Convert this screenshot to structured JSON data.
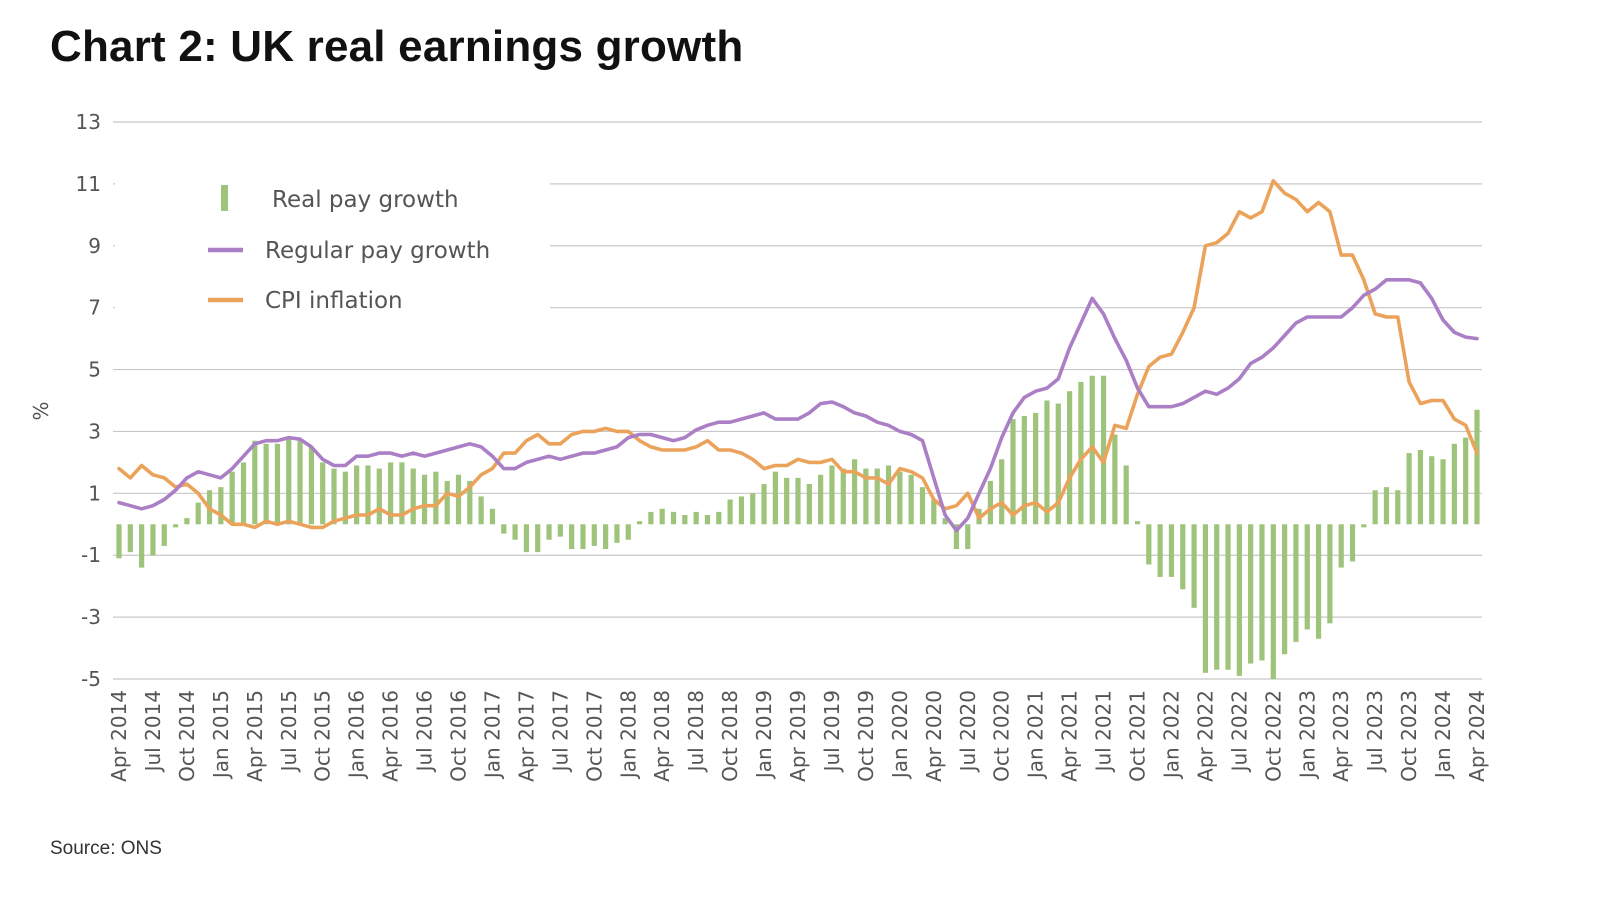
{
  "title": "Chart 2: UK real earnings growth",
  "source": "Source: ONS",
  "colors": {
    "real_pay": "#9dc47a",
    "regular_pay": "#ab7fc5",
    "cpi": "#eba25a",
    "grid": "#c8c8c8",
    "text": "#555555"
  },
  "chart_data": {
    "type": "bar+line",
    "title": "Chart 2: UK real earnings growth",
    "xlabel": "",
    "ylabel": "%",
    "ylim": [
      -5,
      13
    ],
    "yticks": [
      13,
      11,
      9,
      7,
      5,
      3,
      1,
      -1,
      -3,
      -5
    ],
    "grid": true,
    "legend_position": "top-left",
    "start_month": "Apr 2014",
    "end_month": "Apr 2024",
    "xtick_labels": [
      "Apr 2014",
      "Jul 2014",
      "Oct 2014",
      "Jan 2015",
      "Apr 2015",
      "Jul 2015",
      "Oct 2015",
      "Jan 2016",
      "Apr 2016",
      "Jul 2016",
      "Oct 2016",
      "Jan 2017",
      "Apr 2017",
      "Jul 2017",
      "Oct 2017",
      "Jan 2018",
      "Apr 2018",
      "Jul 2018",
      "Oct 2018",
      "Jan 2019",
      "Apr 2019",
      "Jul 2019",
      "Oct 2019",
      "Jan 2020",
      "Apr 2020",
      "Jul 2020",
      "Oct 2020",
      "Jan 2021",
      "Apr 2021",
      "Jul 2021",
      "Oct 2021",
      "Jan 2022",
      "Apr 2022",
      "Jul 2022",
      "Oct 2022",
      "Jan 2023",
      "Apr 2023",
      "Jul 2023",
      "Oct 2023",
      "Jan 2024",
      "Apr 2024"
    ],
    "series": [
      {
        "name": "Real pay growth",
        "type": "bar",
        "values": [
          -1.1,
          -0.9,
          -1.4,
          -1.0,
          -0.7,
          -0.1,
          0.2,
          0.7,
          1.1,
          1.2,
          1.7,
          2.0,
          2.7,
          2.6,
          2.6,
          2.8,
          2.7,
          2.5,
          2.0,
          1.8,
          1.7,
          1.9,
          1.9,
          1.8,
          2.0,
          2.0,
          1.8,
          1.6,
          1.7,
          1.4,
          1.6,
          1.4,
          0.9,
          0.5,
          -0.3,
          -0.5,
          -0.9,
          -0.9,
          -0.5,
          -0.4,
          -0.8,
          -0.8,
          -0.7,
          -0.8,
          -0.6,
          -0.5,
          0.1,
          0.4,
          0.5,
          0.4,
          0.3,
          0.4,
          0.3,
          0.4,
          0.8,
          0.9,
          1.0,
          1.3,
          1.7,
          1.5,
          1.5,
          1.3,
          1.6,
          1.9,
          1.8,
          2.1,
          1.8,
          1.8,
          1.9,
          1.7,
          1.6,
          1.2,
          0.8,
          0.2,
          -0.8,
          -0.8,
          0.5,
          1.4,
          2.1,
          3.4,
          3.5,
          3.6,
          4.0,
          3.9,
          4.3,
          4.6,
          4.8,
          4.8,
          2.9,
          1.9,
          0.1,
          -1.3,
          -1.7,
          -1.7,
          -2.1,
          -2.7,
          -4.8,
          -4.7,
          -4.7,
          -4.9,
          -4.5,
          -4.4,
          -5.0,
          -4.2,
          -3.8,
          -3.4,
          -3.7,
          -3.2,
          -1.4,
          -1.2,
          -0.1,
          1.1,
          1.2,
          1.1,
          2.3,
          2.4,
          2.2,
          2.1,
          2.6,
          2.8,
          3.7
        ]
      },
      {
        "name": "Regular pay growth",
        "type": "line",
        "values": [
          0.7,
          0.6,
          0.5,
          0.6,
          0.8,
          1.1,
          1.5,
          1.7,
          1.6,
          1.5,
          1.8,
          2.2,
          2.6,
          2.7,
          2.7,
          2.8,
          2.75,
          2.5,
          2.1,
          1.9,
          1.9,
          2.2,
          2.2,
          2.3,
          2.3,
          2.2,
          2.3,
          2.2,
          2.3,
          2.4,
          2.5,
          2.6,
          2.5,
          2.2,
          1.8,
          1.8,
          2.0,
          2.1,
          2.2,
          2.1,
          2.2,
          2.3,
          2.3,
          2.4,
          2.5,
          2.8,
          2.9,
          2.9,
          2.8,
          2.7,
          2.8,
          3.05,
          3.2,
          3.3,
          3.3,
          3.4,
          3.5,
          3.6,
          3.4,
          3.4,
          3.4,
          3.6,
          3.9,
          3.95,
          3.8,
          3.6,
          3.5,
          3.3,
          3.2,
          3.0,
          2.9,
          2.7,
          1.5,
          0.3,
          -0.2,
          0.2,
          1.0,
          1.8,
          2.8,
          3.6,
          4.1,
          4.3,
          4.4,
          4.7,
          5.7,
          6.5,
          7.3,
          6.8,
          6.0,
          5.3,
          4.4,
          3.8,
          3.8,
          3.8,
          3.9,
          4.1,
          4.3,
          4.2,
          4.4,
          4.7,
          5.2,
          5.4,
          5.7,
          6.1,
          6.5,
          6.7,
          6.7,
          6.7,
          6.7,
          7.0,
          7.4,
          7.6,
          7.9,
          7.9,
          7.9,
          7.8,
          7.3,
          6.6,
          6.2,
          6.05,
          6.0
        ]
      },
      {
        "name": "CPI inflation",
        "type": "line",
        "values": [
          1.8,
          1.5,
          1.9,
          1.6,
          1.5,
          1.2,
          1.3,
          1.0,
          0.5,
          0.3,
          0.0,
          0.0,
          -0.1,
          0.1,
          0.0,
          0.1,
          0.0,
          -0.1,
          -0.1,
          0.1,
          0.2,
          0.3,
          0.3,
          0.5,
          0.3,
          0.3,
          0.5,
          0.6,
          0.6,
          1.0,
          0.9,
          1.2,
          1.6,
          1.8,
          2.3,
          2.3,
          2.7,
          2.9,
          2.6,
          2.6,
          2.9,
          3.0,
          3.0,
          3.1,
          3.0,
          3.0,
          2.7,
          2.5,
          2.4,
          2.4,
          2.4,
          2.5,
          2.7,
          2.4,
          2.4,
          2.3,
          2.1,
          1.8,
          1.9,
          1.9,
          2.1,
          2.0,
          2.0,
          2.1,
          1.7,
          1.7,
          1.5,
          1.5,
          1.3,
          1.8,
          1.7,
          1.5,
          0.8,
          0.5,
          0.6,
          1.0,
          0.2,
          0.5,
          0.7,
          0.3,
          0.6,
          0.7,
          0.4,
          0.7,
          1.5,
          2.1,
          2.5,
          2.0,
          3.2,
          3.1,
          4.2,
          5.1,
          5.4,
          5.5,
          6.2,
          7.0,
          9.0,
          9.1,
          9.4,
          10.1,
          9.9,
          10.1,
          11.1,
          10.7,
          10.5,
          10.1,
          10.4,
          10.1,
          8.7,
          8.7,
          7.9,
          6.8,
          6.7,
          6.7,
          4.6,
          3.9,
          4.0,
          4.0,
          3.4,
          3.2,
          2.3
        ]
      }
    ],
    "legend": [
      {
        "label": "Real pay growth",
        "marker": "bar"
      },
      {
        "label": "Regular pay growth",
        "marker": "line"
      },
      {
        "label": "CPI inflation",
        "marker": "line"
      }
    ]
  }
}
